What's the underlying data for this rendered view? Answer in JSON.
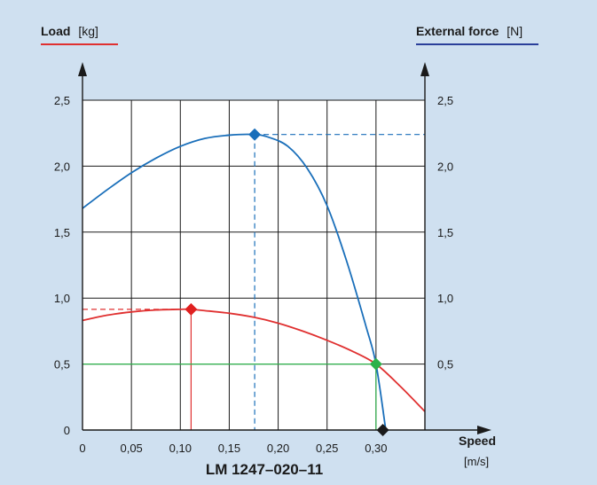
{
  "chart_data": {
    "type": "line",
    "title": "LM 1247–020–11",
    "left_axis": {
      "label_bold": "Load",
      "label_unit": "[kg]",
      "color": "#e03030"
    },
    "right_axis": {
      "label_bold": "External force",
      "label_unit": "[N]",
      "color": "#2a3f9a"
    },
    "x_axis": {
      "label": "Speed",
      "unit": "[m/s]"
    },
    "xlim": [
      0,
      0.35
    ],
    "ylim": [
      0,
      2.5
    ],
    "x_ticks": [
      0,
      0.05,
      0.1,
      0.15,
      0.2,
      0.25,
      0.3
    ],
    "x_tick_labels": [
      "0",
      "0,05",
      "0,10",
      "0,15",
      "0,20",
      "0,25",
      "0,30"
    ],
    "y_ticks": [
      0,
      0.5,
      1.0,
      1.5,
      2.0,
      2.5
    ],
    "y_tick_labels": [
      "0",
      "0,5",
      "1,0",
      "1,5",
      "2,0",
      "2,5"
    ],
    "right_tick_labels": [
      "0,5",
      "1,0",
      "1,5",
      "2,0",
      "2,5"
    ],
    "grid": true,
    "series": [
      {
        "color": "#1a6fba",
        "x": [
          0,
          0.025,
          0.05,
          0.075,
          0.1,
          0.125,
          0.15,
          0.175,
          0.19,
          0.21,
          0.23,
          0.25,
          0.27,
          0.29,
          0.3,
          0.31
        ],
        "y": [
          1.68,
          1.82,
          1.95,
          2.06,
          2.15,
          2.21,
          2.235,
          2.24,
          2.22,
          2.15,
          1.98,
          1.7,
          1.28,
          0.78,
          0.5,
          0.0
        ]
      },
      {
        "color": "#e03030",
        "x": [
          0,
          0.025,
          0.05,
          0.075,
          0.1,
          0.11,
          0.125,
          0.15,
          0.175,
          0.2,
          0.225,
          0.25,
          0.275,
          0.3,
          0.325,
          0.35
        ],
        "y": [
          0.83,
          0.87,
          0.895,
          0.91,
          0.915,
          0.915,
          0.905,
          0.885,
          0.855,
          0.81,
          0.75,
          0.68,
          0.6,
          0.5,
          0.33,
          0.14
        ]
      }
    ],
    "markers": [
      {
        "x": 0.111,
        "y": 0.915,
        "color": "#e02020"
      },
      {
        "x": 0.176,
        "y": 2.24,
        "color": "#1a6fba"
      },
      {
        "x": 0.3,
        "y": 0.5,
        "color": "#2db24a"
      },
      {
        "x": 0.307,
        "y": 0.0,
        "color": "#1a1a1a"
      }
    ],
    "guides": [
      {
        "color": "#e03030",
        "from": [
          0,
          0.915
        ],
        "to": [
          0.111,
          0.915
        ],
        "dashed": true
      },
      {
        "color": "#e03030",
        "from": [
          0.111,
          0.915
        ],
        "to": [
          0.111,
          0
        ],
        "dashed": false
      },
      {
        "color": "#1a6fba",
        "from": [
          0.176,
          2.24
        ],
        "to": [
          0.35,
          2.24
        ],
        "dashed": true
      },
      {
        "color": "#1a6fba",
        "from": [
          0.176,
          2.24
        ],
        "to": [
          0.176,
          0
        ],
        "dashed": true
      },
      {
        "color": "#2db24a",
        "from": [
          0,
          0.5
        ],
        "to": [
          0.3,
          0.5
        ],
        "dashed": false
      },
      {
        "color": "#2db24a",
        "from": [
          0.3,
          0.5
        ],
        "to": [
          0.3,
          0
        ],
        "dashed": false
      }
    ]
  }
}
